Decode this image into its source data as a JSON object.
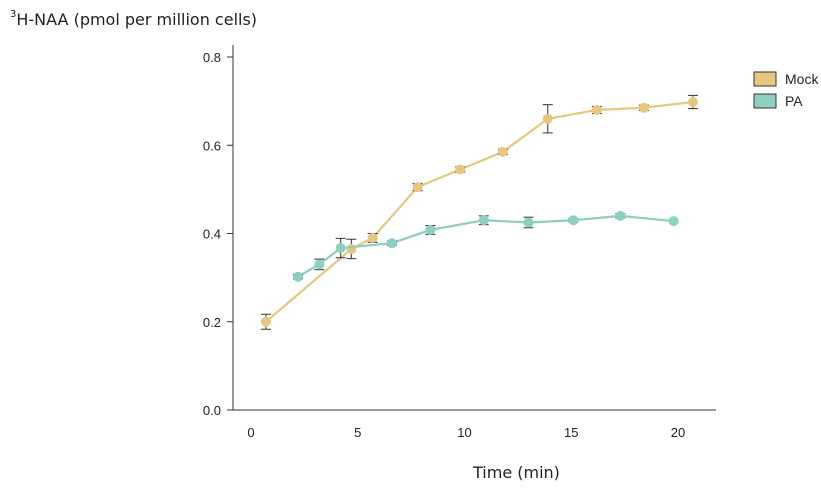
{
  "chart_data": {
    "type": "line",
    "ylabel_sup": "3",
    "ylabel_main": "H-NAA (pmol per million cells)",
    "xlabel": "Time (min)",
    "xlim": [
      -0.5,
      21.5
    ],
    "ylim": [
      0,
      0.82
    ],
    "xticks": [
      0,
      5,
      10,
      15,
      20
    ],
    "xtick_labels": [
      "0",
      "5",
      "10",
      "15",
      "20"
    ],
    "yticks": [
      0.0,
      0.2,
      0.4,
      0.6,
      0.8
    ],
    "ytick_labels": [
      "0.0",
      "0.2",
      "0.4",
      "0.6",
      "0.8"
    ],
    "grid": false,
    "legend_position": "top-right",
    "series": [
      {
        "name": "Mock",
        "color": "#E7C77E",
        "x": [
          0.7,
          4.7,
          5.7,
          7.8,
          9.8,
          11.8,
          13.9,
          16.2,
          18.4,
          20.7
        ],
        "y": [
          0.2,
          0.365,
          0.39,
          0.505,
          0.545,
          0.585,
          0.66,
          0.68,
          0.685,
          0.698
        ],
        "err": [
          0.017,
          0.022,
          0.01,
          0.008,
          0.006,
          0.006,
          0.032,
          0.008,
          0.006,
          0.015
        ]
      },
      {
        "name": "PA",
        "color": "#8DCFC0",
        "x": [
          2.2,
          3.2,
          4.2,
          6.6,
          8.4,
          10.9,
          13.0,
          15.1,
          17.3,
          19.8
        ],
        "y": [
          0.302,
          0.33,
          0.367,
          0.378,
          0.408,
          0.43,
          0.425,
          0.43,
          0.44,
          0.428
        ],
        "err": [
          0.005,
          0.012,
          0.022,
          0.005,
          0.01,
          0.01,
          0.012,
          0.004,
          0.005,
          0.0
        ]
      }
    ]
  }
}
